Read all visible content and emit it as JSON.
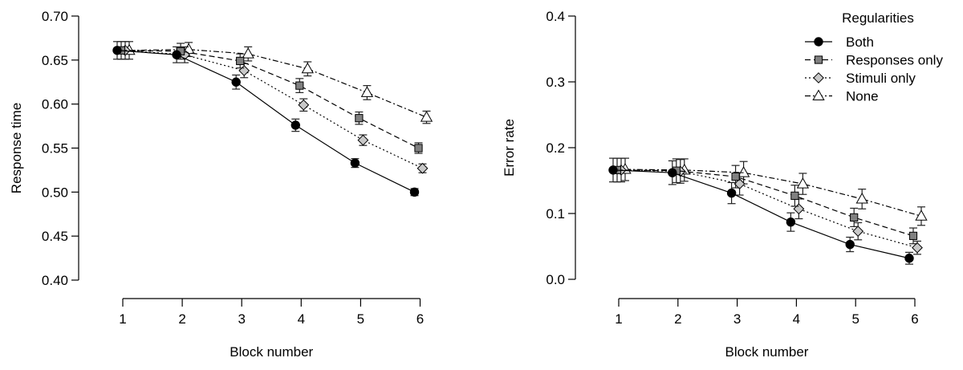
{
  "chart_data": [
    {
      "type": "line",
      "title": "",
      "xlabel": "Block number",
      "ylabel": "Response time",
      "ylim": [
        0.4,
        0.7
      ],
      "yticks": [
        "0.40",
        "0.45",
        "0.50",
        "0.55",
        "0.60",
        "0.65",
        "0.70"
      ],
      "x": [
        1,
        2,
        3,
        4,
        5,
        6
      ],
      "xticks": [
        "1",
        "2",
        "3",
        "4",
        "5",
        "6"
      ],
      "grid": false,
      "error_bars": true,
      "series": [
        {
          "name": "Both",
          "values": [
            0.661,
            0.656,
            0.625,
            0.576,
            0.533,
            0.5
          ],
          "err": [
            0.01,
            0.009,
            0.008,
            0.007,
            0.005,
            0.004
          ]
        },
        {
          "name": "Responses only",
          "values": [
            0.661,
            0.66,
            0.649,
            0.621,
            0.584,
            0.55
          ],
          "err": [
            0.01,
            0.009,
            0.008,
            0.008,
            0.007,
            0.006
          ]
        },
        {
          "name": "Stimuli only",
          "values": [
            0.661,
            0.656,
            0.638,
            0.599,
            0.559,
            0.527
          ],
          "err": [
            0.01,
            0.009,
            0.008,
            0.007,
            0.006,
            0.005
          ]
        },
        {
          "name": "None",
          "values": [
            0.661,
            0.662,
            0.657,
            0.64,
            0.613,
            0.585
          ],
          "err": [
            0.01,
            0.008,
            0.008,
            0.008,
            0.008,
            0.007
          ]
        }
      ]
    },
    {
      "type": "line",
      "title": "",
      "xlabel": "Block number",
      "ylabel": "Error rate",
      "ylim": [
        0.0,
        0.4
      ],
      "yticks": [
        "0.0",
        "0.1",
        "0.2",
        "0.3",
        "0.4"
      ],
      "x": [
        1,
        2,
        3,
        4,
        5,
        6
      ],
      "xticks": [
        "1",
        "2",
        "3",
        "4",
        "5",
        "6"
      ],
      "grid": false,
      "error_bars": true,
      "legend_position": "top-right",
      "series": [
        {
          "name": "Both",
          "values": [
            0.166,
            0.162,
            0.131,
            0.087,
            0.053,
            0.032
          ],
          "err": [
            0.018,
            0.018,
            0.016,
            0.014,
            0.011,
            0.009
          ]
        },
        {
          "name": "Responses only",
          "values": [
            0.166,
            0.165,
            0.156,
            0.127,
            0.094,
            0.066
          ],
          "err": [
            0.018,
            0.018,
            0.017,
            0.016,
            0.014,
            0.012
          ]
        },
        {
          "name": "Stimuli only",
          "values": [
            0.166,
            0.164,
            0.145,
            0.107,
            0.073,
            0.048
          ],
          "err": [
            0.018,
            0.018,
            0.017,
            0.015,
            0.013,
            0.01
          ]
        },
        {
          "name": "None",
          "values": [
            0.167,
            0.166,
            0.162,
            0.145,
            0.122,
            0.096
          ],
          "err": [
            0.017,
            0.017,
            0.017,
            0.016,
            0.015,
            0.014
          ]
        }
      ]
    }
  ],
  "legend": {
    "title": "Regularities",
    "items": [
      {
        "label": "Both",
        "marker": "filled-circle",
        "line": "solid",
        "fill": "#000000"
      },
      {
        "label": "Responses only",
        "marker": "square",
        "line": "dashed",
        "fill": "#808080"
      },
      {
        "label": "Stimuli only",
        "marker": "diamond",
        "line": "dotted",
        "fill": "#c8c8c8"
      },
      {
        "label": "None",
        "marker": "open-triangle",
        "line": "dot-dash",
        "fill": "#ffffff"
      }
    ]
  }
}
